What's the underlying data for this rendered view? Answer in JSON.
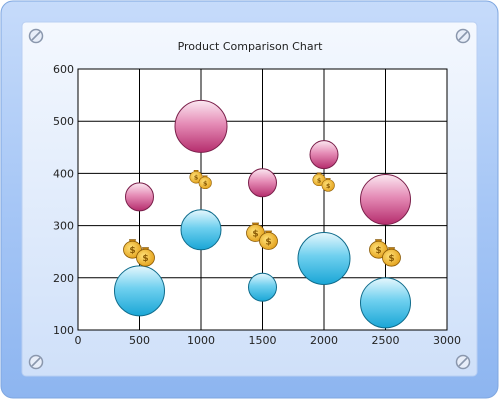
{
  "chart_data": {
    "type": "bubble",
    "title": "Product Comparison Chart",
    "xlabel": "",
    "ylabel": "",
    "xlim": [
      0,
      3000
    ],
    "ylim": [
      100,
      600
    ],
    "x_ticks": [
      0,
      500,
      1000,
      1500,
      2000,
      2500,
      3000
    ],
    "y_ticks": [
      100,
      200,
      300,
      400,
      500,
      600
    ],
    "x_tick_labels": [
      "0",
      "500",
      "1000",
      "1500",
      "2000",
      "2500",
      "3000"
    ],
    "y_tick_labels": [
      "100",
      "200",
      "300",
      "400",
      "500",
      "600"
    ],
    "grid": true,
    "legend": "none",
    "series": [
      {
        "color": "#c8407e",
        "points": [
          {
            "x": 500,
            "y": 355,
            "size": 14
          },
          {
            "x": 1000,
            "y": 490,
            "size": 26
          },
          {
            "x": 1500,
            "y": 382,
            "size": 14
          },
          {
            "x": 2000,
            "y": 436,
            "size": 14
          },
          {
            "x": 2500,
            "y": 350,
            "size": 25
          }
        ]
      },
      {
        "color": "#1aaedc",
        "points": [
          {
            "x": 500,
            "y": 175,
            "size": 25
          },
          {
            "x": 1000,
            "y": 292,
            "size": 20
          },
          {
            "x": 1500,
            "y": 182,
            "size": 14
          },
          {
            "x": 2000,
            "y": 237,
            "size": 26
          },
          {
            "x": 2500,
            "y": 152,
            "size": 25
          }
        ]
      }
    ],
    "markers": [
      {
        "x": 500,
        "y": 250,
        "icon": "money-bag-icon",
        "count": 2
      },
      {
        "x": 1000,
        "y": 390,
        "icon": "money-bag-icon",
        "count": 2
      },
      {
        "x": 1500,
        "y": 282,
        "icon": "money-bag-icon",
        "count": 2
      },
      {
        "x": 2000,
        "y": 385,
        "icon": "money-bag-icon",
        "count": 2
      },
      {
        "x": 2500,
        "y": 250,
        "icon": "money-bag-icon",
        "count": 2
      }
    ]
  },
  "colors": {
    "frame_outer": "#a9c8f5",
    "frame_inner": "#dbe8fb",
    "plot_bg": "#ffffff"
  }
}
